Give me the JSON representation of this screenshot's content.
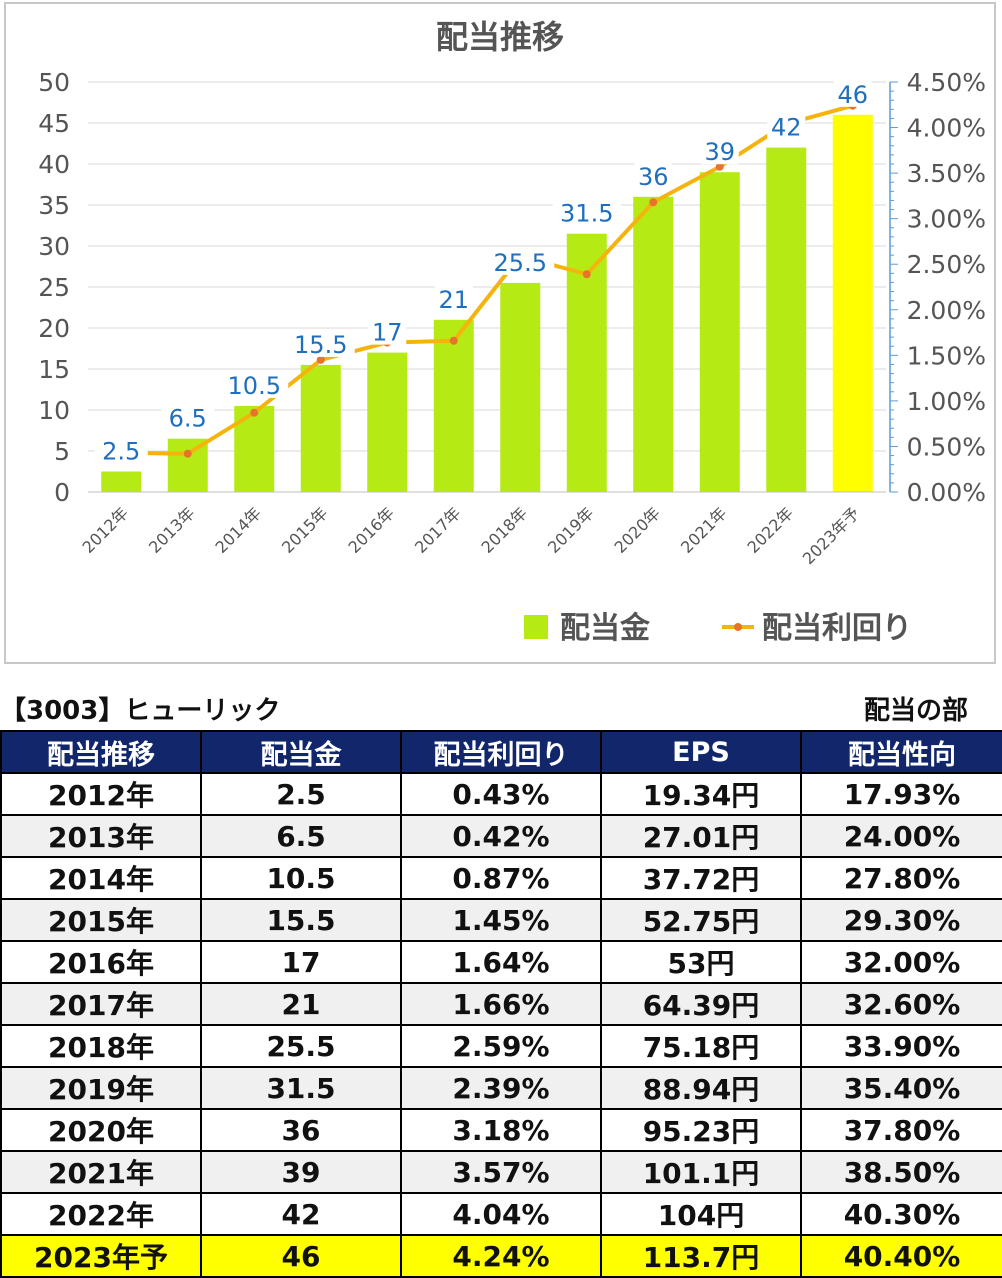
{
  "chart_data": {
    "type": "bar",
    "title": "配当推移",
    "categories": [
      "2012年",
      "2013年",
      "2014年",
      "2015年",
      "2016年",
      "2017年",
      "2018年",
      "2019年",
      "2020年",
      "2021年",
      "2022年",
      "2023年予"
    ],
    "series": [
      {
        "name": "配当金",
        "type": "bar",
        "axis": "left",
        "values": [
          2.5,
          6.5,
          10.5,
          15.5,
          17,
          21,
          25.5,
          31.5,
          36,
          39,
          42,
          46
        ],
        "labels": [
          "2.5",
          "6.5",
          "10.5",
          "15.5",
          "17",
          "21",
          "25.5",
          "31.5",
          "36",
          "39",
          "42",
          "46"
        ],
        "color": "#b5ea15",
        "highlight_color": "#ffff00",
        "highlight_index": 11
      },
      {
        "name": "配当利回り",
        "type": "line",
        "axis": "right",
        "values": [
          0.43,
          0.42,
          0.87,
          1.45,
          1.64,
          1.66,
          2.59,
          2.39,
          3.18,
          3.57,
          4.04,
          4.24
        ],
        "color": "#f5b40d",
        "marker_color": "#e8742a"
      }
    ],
    "left_axis": {
      "ylim": [
        0,
        50
      ],
      "ticks": [
        "0",
        "5",
        "10",
        "15",
        "20",
        "25",
        "30",
        "35",
        "40",
        "45",
        "50"
      ]
    },
    "right_axis": {
      "ylim": [
        0,
        4.5
      ],
      "ticks": [
        "0.00%",
        "0.50%",
        "1.00%",
        "1.50%",
        "2.00%",
        "2.50%",
        "3.00%",
        "3.50%",
        "4.00%",
        "4.50%"
      ]
    },
    "grid": true,
    "legend_position": "bottom-right",
    "data_label_color": "#1f6fbf"
  },
  "table": {
    "company": "【3003】ヒューリック",
    "section": "配当の部",
    "headers": [
      "配当推移",
      "配当金",
      "配当利回り",
      "EPS",
      "配当性向"
    ],
    "rows": [
      [
        "2012年",
        "2.5",
        "0.43%",
        "19.34円",
        "17.93%"
      ],
      [
        "2013年",
        "6.5",
        "0.42%",
        "27.01円",
        "24.00%"
      ],
      [
        "2014年",
        "10.5",
        "0.87%",
        "37.72円",
        "27.80%"
      ],
      [
        "2015年",
        "15.5",
        "1.45%",
        "52.75円",
        "29.30%"
      ],
      [
        "2016年",
        "17",
        "1.64%",
        "53円",
        "32.00%"
      ],
      [
        "2017年",
        "21",
        "1.66%",
        "64.39円",
        "32.60%"
      ],
      [
        "2018年",
        "25.5",
        "2.59%",
        "75.18円",
        "33.90%"
      ],
      [
        "2019年",
        "31.5",
        "2.39%",
        "88.94円",
        "35.40%"
      ],
      [
        "2020年",
        "36",
        "3.18%",
        "95.23円",
        "37.80%"
      ],
      [
        "2021年",
        "39",
        "3.57%",
        "101.1円",
        "38.50%"
      ],
      [
        "2022年",
        "42",
        "4.04%",
        "104円",
        "40.30%"
      ],
      [
        "2023年予",
        "46",
        "4.24%",
        "113.7円",
        "40.40%"
      ]
    ],
    "highlight_row": 11,
    "header_color": "#12276b",
    "highlight_color": "#ffff00"
  }
}
